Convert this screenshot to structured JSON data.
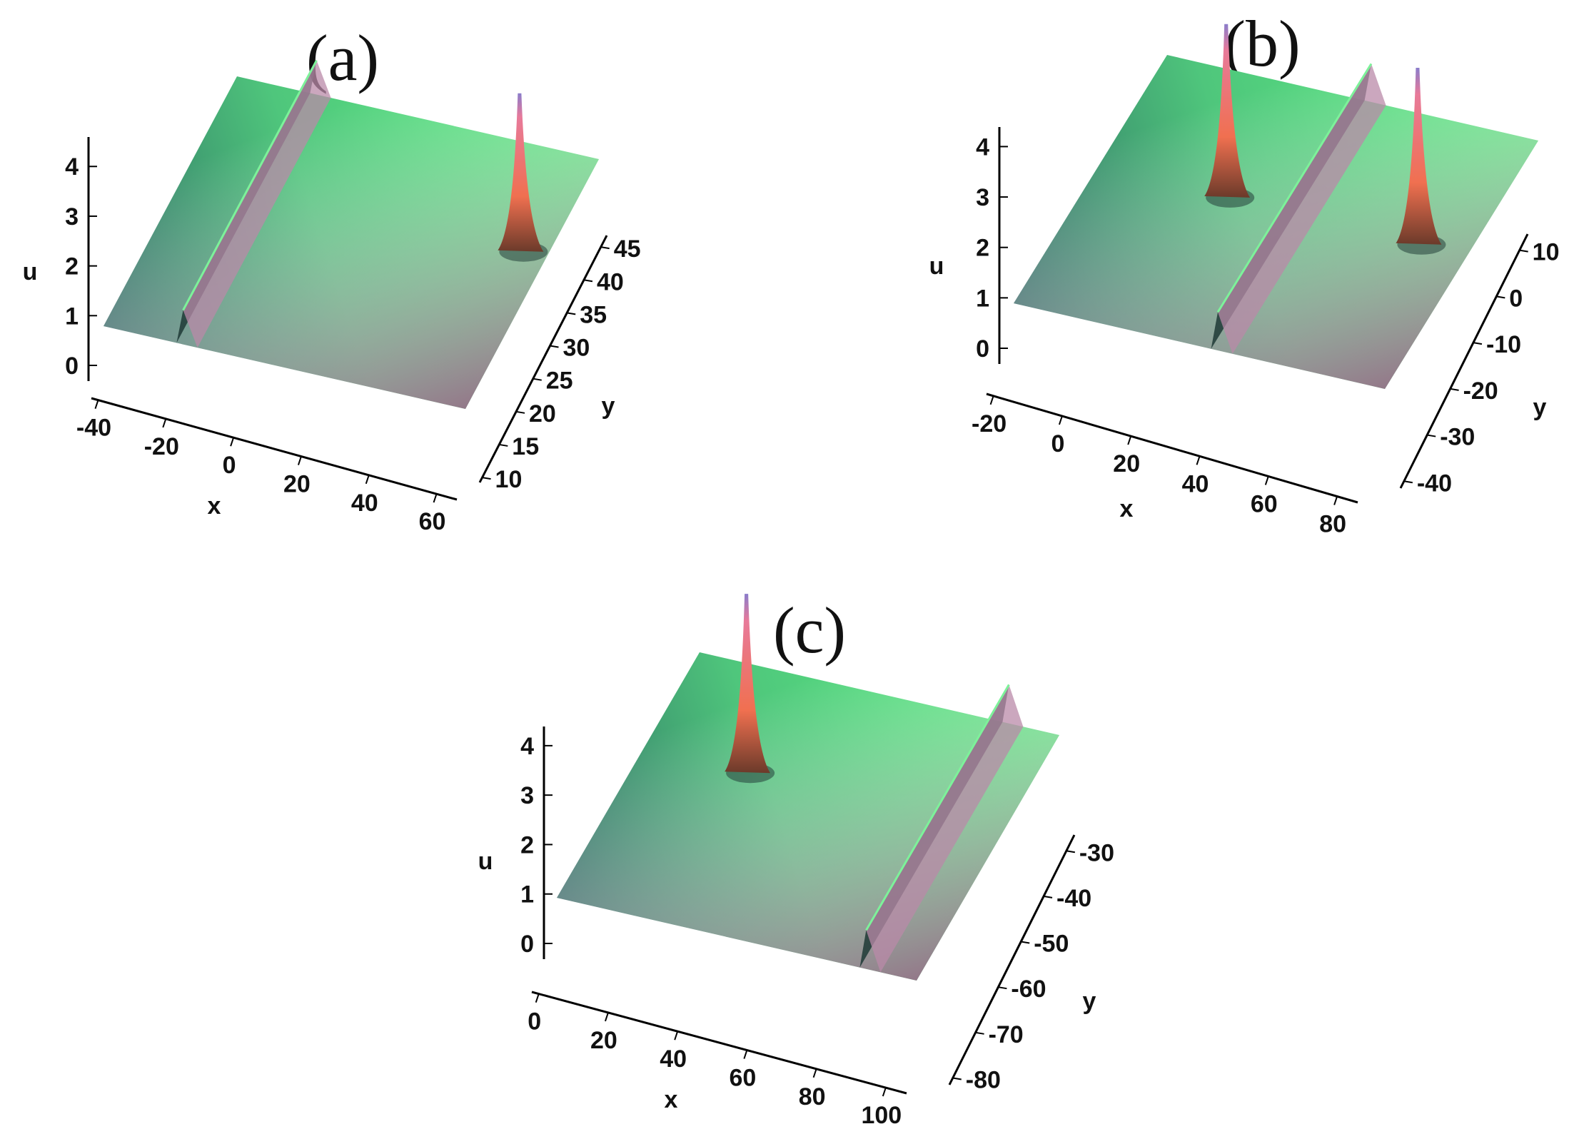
{
  "chart_data": [
    {
      "type": "surface3d",
      "panel_label": "(a)",
      "xlabel": "x",
      "ylabel": "y",
      "zlabel": "u",
      "x_ticks": [
        "-40",
        "-20",
        "0",
        "20",
        "40",
        "60"
      ],
      "y_ticks": [
        "10",
        "15",
        "20",
        "25",
        "30",
        "35",
        "40",
        "45"
      ],
      "z_ticks": [
        "0",
        "1",
        "2",
        "3",
        "4"
      ],
      "xlim": [
        -45,
        60
      ],
      "ylim": [
        10,
        45
      ],
      "zlim": [
        0,
        4.5
      ],
      "background_level": 1.0,
      "line_soliton": {
        "position": 0.22,
        "height": 1.3
      },
      "spikes": [
        {
          "u": 0.92,
          "v": 0.62,
          "height": 5.2
        }
      ],
      "colors": {
        "surface_top": "#5CF282",
        "surface_left": "#2D6A64",
        "surface_right": "#9A6E8A",
        "spike": "#F07050",
        "spike_tip": "#8A7CCB"
      }
    },
    {
      "type": "surface3d",
      "panel_label": "(b)",
      "xlabel": "x",
      "ylabel": "y",
      "zlabel": "u",
      "x_ticks": [
        "-20",
        "0",
        "20",
        "40",
        "60",
        "80"
      ],
      "y_ticks": [
        "-40",
        "-30",
        "-20",
        "-10",
        "0",
        "10"
      ],
      "z_ticks": [
        "0",
        "1",
        "2",
        "3",
        "4"
      ],
      "xlim": [
        -20,
        85
      ],
      "ylim": [
        -40,
        12
      ],
      "zlim": [
        0,
        4.3
      ],
      "background_level": 1.0,
      "line_soliton": {
        "position": 0.55,
        "height": 1.3
      },
      "spikes": [
        {
          "u": 0.34,
          "v": 0.56,
          "height": 5.1
        },
        {
          "u": 0.86,
          "v": 0.55,
          "height": 5.2
        }
      ],
      "colors": {
        "surface_top": "#5CF282",
        "surface_left": "#2D6A64",
        "surface_right": "#9A6E8A",
        "spike": "#F07050",
        "spike_tip": "#8A7CCB"
      }
    },
    {
      "type": "surface3d",
      "panel_label": "(c)",
      "xlabel": "x",
      "ylabel": "y",
      "zlabel": "u",
      "x_ticks": [
        "0",
        "20",
        "40",
        "60",
        "80",
        "100"
      ],
      "y_ticks": [
        "-80",
        "-70",
        "-60",
        "-50",
        "-40",
        "-30"
      ],
      "z_ticks": [
        "0",
        "1",
        "2",
        "3",
        "4"
      ],
      "xlim": [
        0,
        102
      ],
      "ylim": [
        -80,
        -28
      ],
      "zlim": [
        0,
        4.3
      ],
      "background_level": 1.0,
      "line_soliton": {
        "position": 0.86,
        "height": 1.3
      },
      "spikes": [
        {
          "u": 0.28,
          "v": 0.62,
          "height": 5.2
        }
      ],
      "colors": {
        "surface_top": "#5CF282",
        "surface_left": "#2D6A64",
        "surface_right": "#9A6E8A",
        "spike": "#F07050",
        "spike_tip": "#8A7CCB"
      }
    }
  ]
}
